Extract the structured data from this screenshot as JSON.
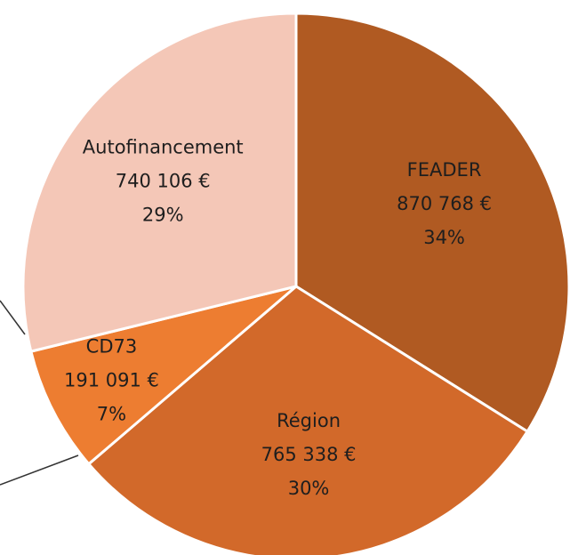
{
  "chart_data": {
    "type": "pie",
    "categories": [
      "FEADER",
      "Région",
      "CD73",
      "Autofinancement"
    ],
    "values": [
      870768,
      765338,
      191091,
      740106
    ],
    "value_labels": [
      "870 768 €",
      "765 338 €",
      "191 091 €",
      "740 106 €"
    ],
    "percents": [
      34,
      30,
      7,
      29
    ],
    "percent_labels": [
      "34%",
      "30%",
      "7%",
      "29%"
    ],
    "colors": [
      "#b05a22",
      "#d2692a",
      "#ed7d31",
      "#f4c7b7"
    ]
  }
}
